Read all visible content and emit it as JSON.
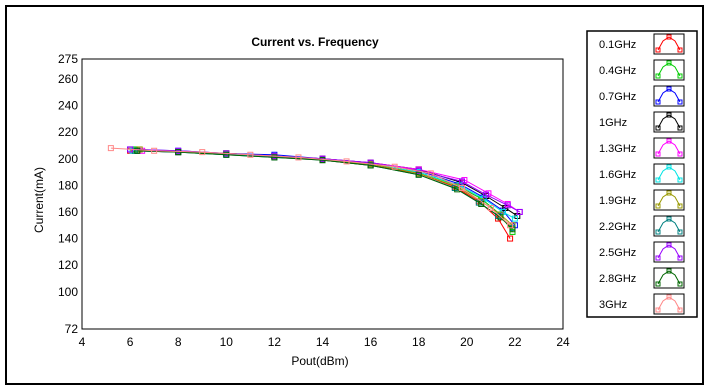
{
  "chart_data": {
    "type": "line",
    "title": "Current vs. Frequency",
    "xlabel": "Pout(dBm)",
    "ylabel": "Current(mA)",
    "xlim": [
      4,
      24
    ],
    "ylim": [
      72,
      275
    ],
    "x_ticks": [
      4,
      6,
      8,
      10,
      12,
      14,
      16,
      18,
      20,
      22,
      24
    ],
    "y_ticks": [
      72,
      100,
      120,
      140,
      160,
      180,
      200,
      220,
      240,
      260,
      275
    ],
    "grid": true,
    "legend_position": "right",
    "series": [
      {
        "name": "0.1GHz",
        "color": "#ff0000",
        "x": [
          6,
          8,
          10,
          12,
          14,
          16,
          18,
          19.5,
          20.5,
          21.3,
          21.8
        ],
        "y": [
          206,
          205,
          204,
          202,
          199,
          195,
          189,
          179,
          168,
          155,
          140
        ]
      },
      {
        "name": "0.4GHz",
        "color": "#00cc00",
        "x": [
          6.2,
          8,
          10,
          12,
          14,
          16,
          18,
          19.6,
          20.6,
          21.4,
          21.9
        ],
        "y": [
          207,
          205,
          204,
          202,
          200,
          196,
          190,
          180,
          170,
          158,
          145
        ]
      },
      {
        "name": "0.7GHz",
        "color": "#0000ff",
        "x": [
          6,
          8,
          10,
          12,
          14,
          16,
          18,
          19.7,
          20.7,
          21.5,
          22.0
        ],
        "y": [
          207,
          206,
          204,
          203,
          200,
          197,
          191,
          181,
          171,
          161,
          150
        ]
      },
      {
        "name": "1GHz",
        "color": "#000000",
        "x": [
          6.3,
          8,
          10,
          12,
          14,
          16,
          18,
          19.8,
          20.8,
          21.6,
          22.1
        ],
        "y": [
          206,
          205,
          204,
          202,
          200,
          197,
          192,
          182,
          172,
          163,
          157
        ]
      },
      {
        "name": "1.3GHz",
        "color": "#ff00ff",
        "x": [
          6.5,
          8,
          10,
          12,
          14,
          16,
          18,
          19.9,
          20.9,
          21.7,
          22.2
        ],
        "y": [
          206,
          205,
          204,
          202,
          200,
          197,
          192,
          184,
          174,
          166,
          160
        ]
      },
      {
        "name": "1.6GHz",
        "color": "#00e5e5",
        "x": [
          6.1,
          8,
          10,
          12,
          14,
          16,
          18,
          19.7,
          20.7,
          21.5,
          22.0
        ],
        "y": [
          206,
          205,
          203,
          202,
          199,
          196,
          190,
          180,
          170,
          160,
          155
        ]
      },
      {
        "name": "1.9GHz",
        "color": "#999900",
        "x": [
          6.4,
          8,
          10,
          12,
          14,
          16,
          18,
          19.6,
          20.6,
          21.4,
          21.9
        ],
        "y": [
          207,
          205,
          204,
          202,
          199,
          196,
          189,
          179,
          168,
          158,
          150
        ]
      },
      {
        "name": "2.2GHz",
        "color": "#008080",
        "x": [
          6.2,
          8,
          10,
          12,
          14,
          16,
          18,
          19.5,
          20.5,
          21.3,
          21.9
        ],
        "y": [
          206,
          205,
          203,
          201,
          199,
          195,
          188,
          178,
          167,
          157,
          148
        ]
      },
      {
        "name": "2.5GHz",
        "color": "#9900ff",
        "x": [
          6.0,
          8,
          10,
          12,
          14,
          16,
          18,
          19.8,
          20.8,
          21.7,
          22.2
        ],
        "y": [
          207,
          206,
          204,
          202,
          200,
          197,
          191,
          183,
          173,
          165,
          160
        ]
      },
      {
        "name": "2.8GHz",
        "color": "#006600",
        "x": [
          6.3,
          8,
          10,
          12,
          14,
          16,
          18,
          19.6,
          20.6,
          21.4,
          21.9
        ],
        "y": [
          206,
          205,
          203,
          201,
          199,
          195,
          188,
          177,
          166,
          156,
          147
        ]
      },
      {
        "name": "3GHz",
        "color": "#ff8888",
        "x": [
          5.2,
          7,
          9,
          11,
          13,
          15,
          17,
          18.5,
          19.8,
          21.0,
          21.8
        ],
        "y": [
          208,
          206,
          205,
          203,
          201,
          198,
          194,
          189,
          178,
          163,
          150
        ]
      }
    ]
  }
}
